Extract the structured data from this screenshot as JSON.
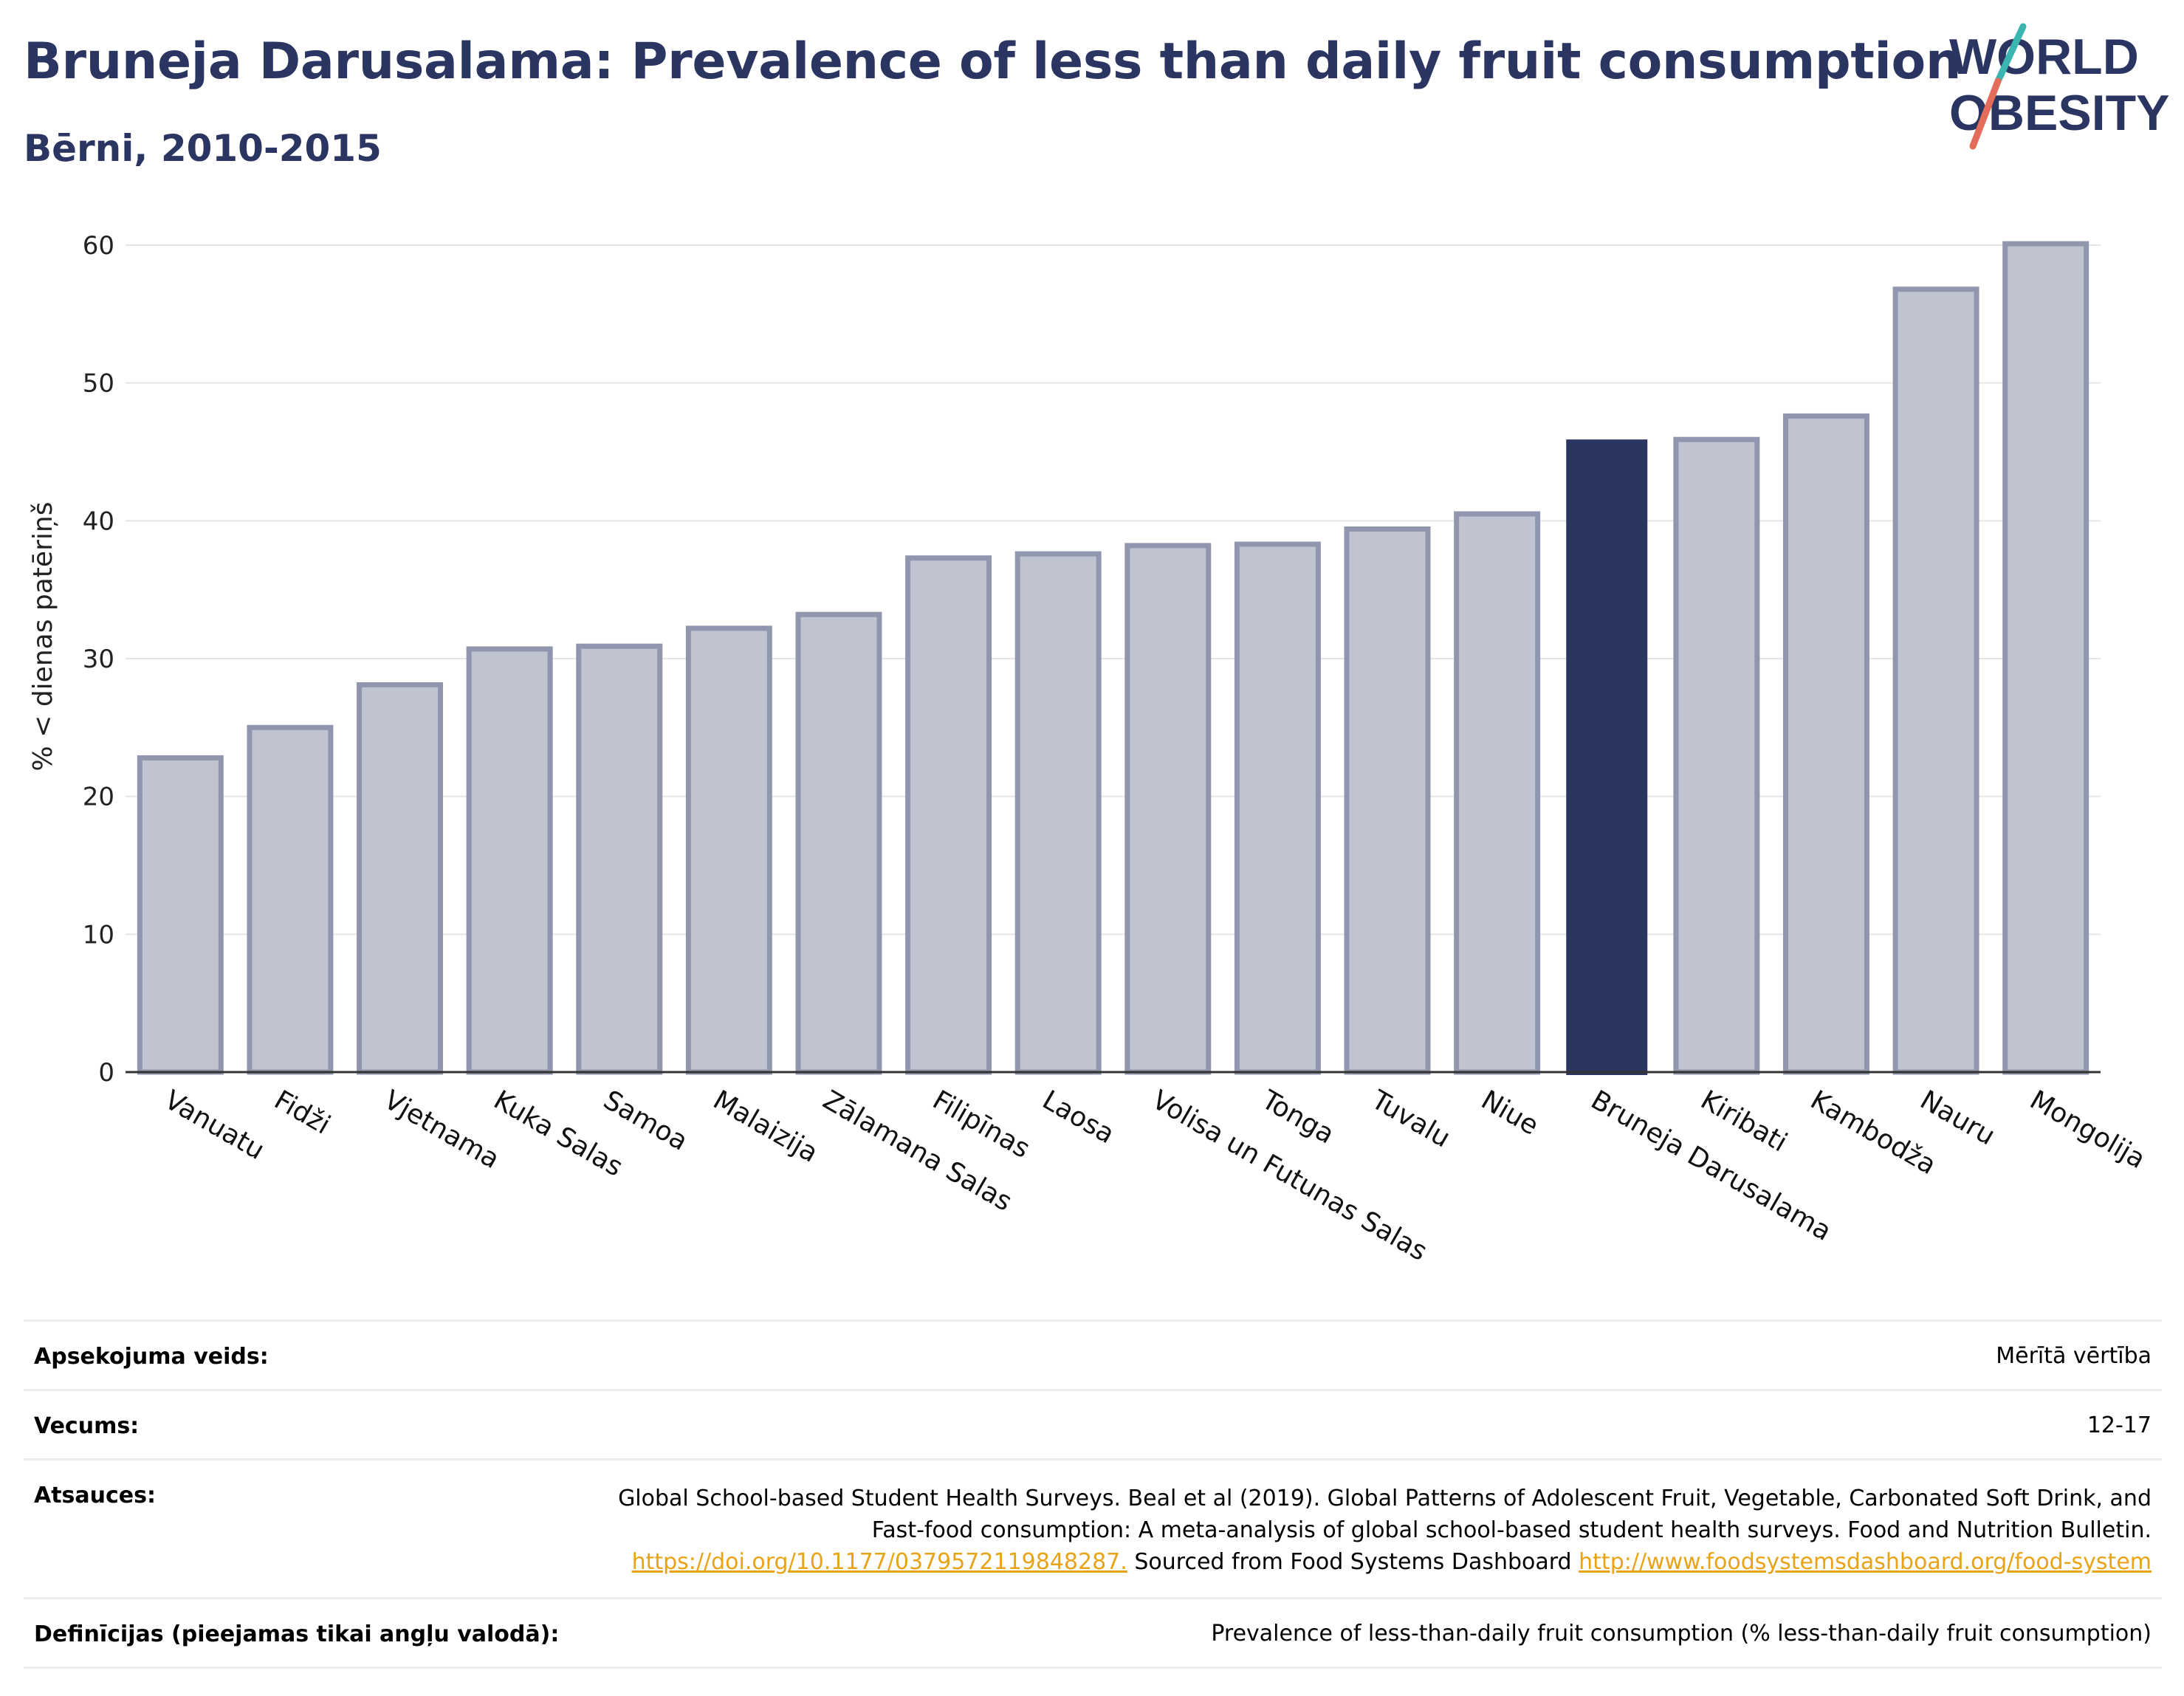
{
  "header": {
    "title": "Bruneja Darusalama: Prevalence of less than daily fruit consumption",
    "subtitle": "Bērni, 2010-2015",
    "logo_line1": "WORLD",
    "logo_line2": "OBESITY"
  },
  "colors": {
    "title": "#2b3561",
    "highlight_bar": "#2b3561",
    "other_bar_fill": "#c0c3d0",
    "other_bar_stroke": "#9096ae",
    "logo_slash_top": "#3ab5b0",
    "logo_slash_bottom": "#e36c5a",
    "link": "#e8a317"
  },
  "chart_data": {
    "type": "bar",
    "ylabel": "% < dienas patēriņš",
    "xlabel": "",
    "ylim": [
      0,
      60
    ],
    "yticks": [
      0,
      10,
      20,
      30,
      40,
      50,
      60
    ],
    "grid": true,
    "highlight": "Bruneja Darusalama",
    "categories": [
      "Vanuatu",
      "Fidži",
      "Vjetnama",
      "Kuka Salas",
      "Samoa",
      "Malaizija",
      "Zālamana Salas",
      "Filipīnas",
      "Laosa",
      "Volisa un Futunas Salas",
      "Tonga",
      "Tuvalu",
      "Niue",
      "Bruneja Darusalama",
      "Kiribati",
      "Kambodža",
      "Nauru",
      "Mongolija"
    ],
    "values": [
      22.8,
      25.0,
      28.1,
      30.7,
      30.9,
      32.2,
      33.2,
      37.3,
      37.6,
      38.2,
      38.3,
      39.4,
      40.5,
      45.9,
      45.9,
      47.6,
      56.8,
      60.1
    ]
  },
  "meta": {
    "survey_label": "Apsekojuma veids:",
    "survey_value": "Mērītā vērtība",
    "age_label": "Vecums:",
    "age_value": "12-17",
    "refs_label": "Atsauces:",
    "refs_text1": "Global School-based Student Health Surveys. Beal et al (2019). Global Patterns of Adolescent Fruit, Vegetable, Carbonated Soft Drink, and Fast-food consumption: A meta-analysis of global school-based student health surveys. Food and Nutrition Bulletin.",
    "refs_link1": "https://doi.org/10.1177/0379572119848287.",
    "refs_text2": "Sourced from Food Systems Dashboard",
    "refs_link2": "http://www.foodsystemsdashboard.org/food-system",
    "defs_label": "Definīcijas (pieejamas tikai angļu valodā):",
    "defs_value": "Prevalence of less-than-daily fruit consumption (% less-than-daily fruit consumption)"
  }
}
